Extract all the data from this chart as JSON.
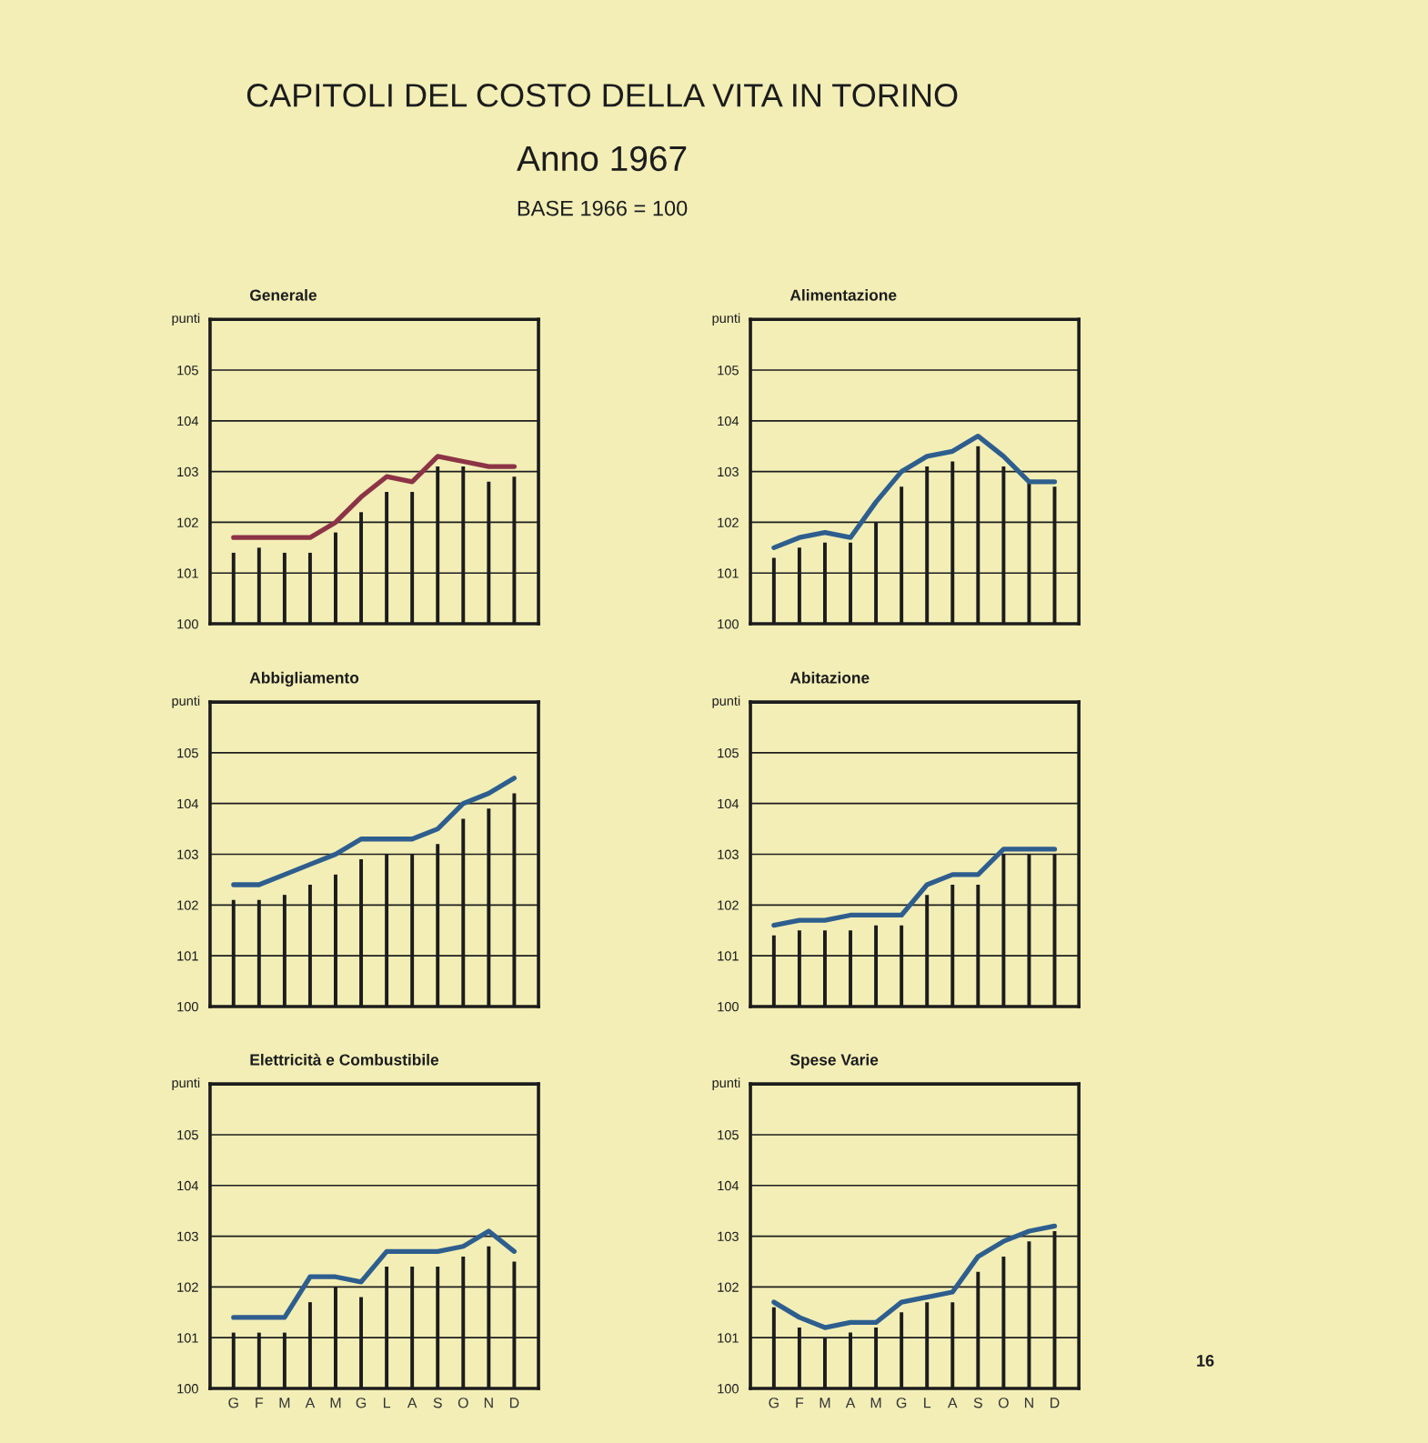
{
  "chart_data": [
    {
      "type": "other",
      "title": "CAPITOLI DEL COSTO DELLA VITA IN TORINO",
      "subtitle": "Anno 1967",
      "annotations": [
        "BASE 1966 = 100",
        "16"
      ]
    },
    {
      "type": "bar",
      "title": "Generale",
      "ylabel": "punti",
      "categories": [
        null,
        null,
        null,
        null,
        null,
        null,
        null,
        null,
        null,
        null,
        null,
        null
      ],
      "series": [
        {
          "type": "bar",
          "color": "#1c1c1c",
          "values": [
            101.4,
            101.5,
            101.4,
            101.4,
            101.8,
            102.2,
            102.6,
            102.6,
            103.1,
            103.1,
            102.8,
            102.9
          ]
        },
        {
          "type": "line",
          "color": "#8c3446",
          "values": [
            101.7,
            101.7,
            101.7,
            101.7,
            102.0,
            102.5,
            102.9,
            102.8,
            103.3,
            103.2,
            103.1,
            103.1
          ]
        }
      ],
      "ylim": [
        100,
        106
      ],
      "yticks": [
        100,
        101,
        102,
        103,
        104,
        105
      ],
      "grid": "y",
      "tick_labels": "y"
    },
    {
      "type": "bar",
      "title": "Alimentazione",
      "ylabel": "punti",
      "categories": [
        null,
        null,
        null,
        null,
        null,
        null,
        null,
        null,
        null,
        null,
        null,
        null
      ],
      "series": [
        {
          "type": "bar",
          "color": "#1c1c1c",
          "values": [
            101.3,
            101.5,
            101.6,
            101.6,
            102.0,
            102.7,
            103.1,
            103.2,
            103.5,
            103.1,
            102.8,
            102.7
          ]
        },
        {
          "type": "line",
          "color": "#2e5e8e",
          "values": [
            101.5,
            101.7,
            101.8,
            101.7,
            102.4,
            103.0,
            103.3,
            103.4,
            103.7,
            103.3,
            102.8,
            102.8
          ]
        }
      ],
      "ylim": [
        100,
        106
      ],
      "yticks": [
        100,
        101,
        102,
        103,
        104,
        105
      ],
      "grid": "y",
      "tick_labels": "y"
    },
    {
      "type": "bar",
      "title": "Abbigliamento",
      "ylabel": "punti",
      "categories": [
        null,
        null,
        null,
        null,
        null,
        null,
        null,
        null,
        null,
        null,
        null,
        null
      ],
      "series": [
        {
          "type": "bar",
          "color": "#1c1c1c",
          "values": [
            102.1,
            102.1,
            102.2,
            102.4,
            102.6,
            102.9,
            103.0,
            103.0,
            103.2,
            103.7,
            103.9,
            104.2
          ]
        },
        {
          "type": "line",
          "color": "#2e5e8e",
          "values": [
            102.4,
            102.4,
            102.6,
            102.8,
            103.0,
            103.3,
            103.3,
            103.3,
            103.5,
            104.0,
            104.2,
            104.5
          ]
        }
      ],
      "ylim": [
        100,
        106
      ],
      "yticks": [
        100,
        101,
        102,
        103,
        104,
        105
      ],
      "grid": "y",
      "tick_labels": "y"
    },
    {
      "type": "bar",
      "title": "Abitazione",
      "ylabel": "punti",
      "categories": [
        null,
        null,
        null,
        null,
        null,
        null,
        null,
        null,
        null,
        null,
        null,
        null
      ],
      "series": [
        {
          "type": "bar",
          "color": "#1c1c1c",
          "values": [
            101.4,
            101.5,
            101.5,
            101.5,
            101.6,
            101.6,
            102.2,
            102.4,
            102.4,
            103.0,
            103.0,
            103.0
          ]
        },
        {
          "type": "line",
          "color": "#2e5e8e",
          "values": [
            101.6,
            101.7,
            101.7,
            101.8,
            101.8,
            101.8,
            102.4,
            102.6,
            102.6,
            103.1,
            103.1,
            103.1
          ]
        }
      ],
      "ylim": [
        100,
        106
      ],
      "yticks": [
        100,
        101,
        102,
        103,
        104,
        105
      ],
      "grid": "y",
      "tick_labels": "y"
    },
    {
      "type": "bar",
      "title": "Elettricità e Combustibile",
      "ylabel": "punti",
      "categories": [
        "G",
        "F",
        "M",
        "A",
        "M",
        "G",
        "L",
        "A",
        "S",
        "O",
        "N",
        "D"
      ],
      "series": [
        {
          "type": "bar",
          "color": "#1c1c1c",
          "values": [
            101.1,
            101.1,
            101.1,
            101.7,
            102.0,
            101.8,
            102.4,
            102.4,
            102.4,
            102.6,
            102.8,
            102.5
          ]
        },
        {
          "type": "line",
          "color": "#2e5e8e",
          "values": [
            101.4,
            101.4,
            101.4,
            102.2,
            102.2,
            102.1,
            102.7,
            102.7,
            102.7,
            102.8,
            103.1,
            102.7
          ]
        }
      ],
      "ylim": [
        100,
        106
      ],
      "yticks": [
        100,
        101,
        102,
        103,
        104,
        105
      ],
      "grid": "y"
    },
    {
      "type": "bar",
      "title": "Spese Varie",
      "ylabel": "punti",
      "categories": [
        "G",
        "F",
        "M",
        "A",
        "M",
        "G",
        "L",
        "A",
        "S",
        "O",
        "N",
        "D"
      ],
      "series": [
        {
          "type": "bar",
          "color": "#1c1c1c",
          "values": [
            101.6,
            101.2,
            101.0,
            101.1,
            101.2,
            101.5,
            101.7,
            101.7,
            102.3,
            102.6,
            102.9,
            103.1
          ]
        },
        {
          "type": "line",
          "color": "#2e5e8e",
          "values": [
            101.7,
            101.4,
            101.2,
            101.3,
            101.3,
            101.7,
            101.8,
            101.9,
            102.6,
            102.9,
            103.1,
            103.2
          ]
        }
      ],
      "ylim": [
        100,
        106
      ],
      "yticks": [
        100,
        101,
        102,
        103,
        104,
        105
      ],
      "grid": "y"
    }
  ]
}
